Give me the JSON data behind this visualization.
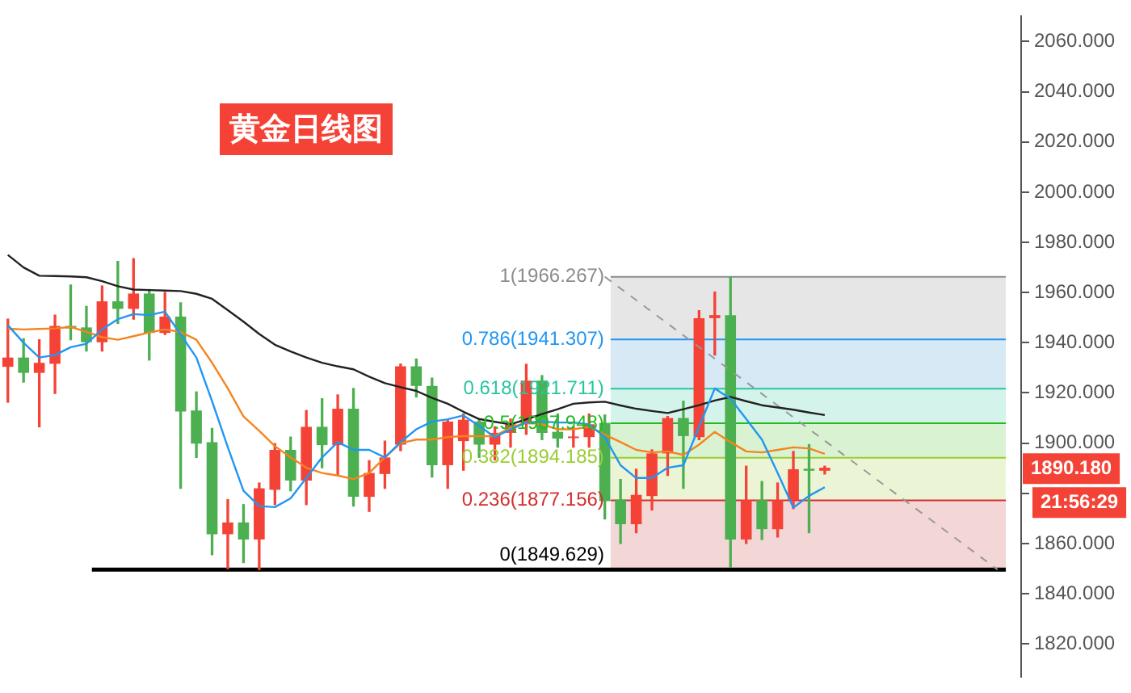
{
  "chart_data": {
    "type": "candlestick",
    "title": "黄金日线图",
    "categories": [
      null,
      null,
      null,
      null,
      null,
      null,
      null,
      null,
      null,
      null,
      null,
      null,
      null,
      null,
      null,
      null,
      null,
      null,
      null,
      null,
      null,
      null,
      null,
      null,
      null,
      null,
      null,
      null,
      null,
      null,
      null,
      null,
      null,
      null,
      null,
      null,
      null,
      null,
      null,
      null,
      null,
      null,
      null,
      null,
      null,
      null,
      null,
      null,
      null,
      null,
      null,
      null,
      null,
      null,
      null,
      null,
      null,
      null,
      null,
      null,
      null,
      null,
      null,
      null,
      null
    ],
    "ohlc": [
      [
        1930.4,
        1949.4,
        1916.3,
        1934.1
      ],
      [
        1934.1,
        1941.6,
        1924.3,
        1928.0
      ],
      [
        1928.0,
        1941.2,
        1906.5,
        1932.0
      ],
      [
        1931.6,
        1951.0,
        1919.8,
        1946.7
      ],
      [
        1946.7,
        1963.0,
        1941.2,
        1945.7
      ],
      [
        1946.1,
        1954.5,
        1936.7,
        1940.2
      ],
      [
        1940.2,
        1962.6,
        1936.7,
        1956.5
      ],
      [
        1956.5,
        1972.4,
        1947.7,
        1953.5
      ],
      [
        1953.5,
        1973.5,
        1949.4,
        1959.6
      ],
      [
        1959.6,
        1961.2,
        1933.1,
        1943.9
      ],
      [
        1943.9,
        1960.0,
        1943.3,
        1950.4
      ],
      [
        1950.4,
        1955.9,
        1882.0,
        1912.6
      ],
      [
        1913.0,
        1920.4,
        1894.3,
        1899.8
      ],
      [
        1900.4,
        1905.9,
        1855.5,
        1863.7
      ],
      [
        1863.7,
        1877.5,
        1850.0,
        1868.4
      ],
      [
        1868.4,
        1875.5,
        1852.4,
        1861.6
      ],
      [
        1861.6,
        1884.1,
        1849.6,
        1882.0
      ],
      [
        1881.4,
        1899.8,
        1875.5,
        1897.3
      ],
      [
        1897.3,
        1902.4,
        1881.0,
        1885.1
      ],
      [
        1885.1,
        1913.0,
        1875.5,
        1906.5
      ],
      [
        1906.5,
        1917.7,
        1890.2,
        1899.2
      ],
      [
        1899.2,
        1919.2,
        1887.1,
        1913.7
      ],
      [
        1913.7,
        1921.8,
        1874.9,
        1878.6
      ],
      [
        1878.6,
        1893.0,
        1872.8,
        1888.1
      ],
      [
        1887.7,
        1900.8,
        1882.0,
        1894.3
      ],
      [
        1899.4,
        1931.5,
        1897.0,
        1930.6
      ],
      [
        1930.6,
        1933.5,
        1918.4,
        1922.8
      ],
      [
        1922.8,
        1925.9,
        1886.5,
        1891.2
      ],
      [
        1891.2,
        1909.0,
        1882.0,
        1908.6
      ],
      [
        1900.8,
        1911.6,
        1889.2,
        1909.3
      ],
      [
        1908.6,
        1909.6,
        1894.3,
        1899.4
      ],
      [
        1899.4,
        1906.5,
        1893.3,
        1904.1
      ],
      [
        1904.1,
        1909.6,
        1898.4,
        1907.5
      ],
      [
        1907.5,
        1931.4,
        1903.5,
        1924.9
      ],
      [
        1924.9,
        1926.9,
        1901.4,
        1904.1
      ],
      [
        1904.5,
        1911.6,
        1898.4,
        1901.8
      ],
      [
        1902.0,
        1906.5,
        1898.4,
        1902.4
      ],
      [
        1902.4,
        1911.6,
        1898.4,
        1907.5
      ],
      [
        1908.1,
        1911.2,
        1869.8,
        1876.9
      ],
      [
        1877.5,
        1885.5,
        1860.0,
        1867.7
      ],
      [
        1867.7,
        1889.6,
        1864.3,
        1879.4
      ],
      [
        1878.9,
        1897.3,
        1873.4,
        1895.9
      ],
      [
        1895.9,
        1910.6,
        1887.1,
        1910.0
      ],
      [
        1910.0,
        1916.7,
        1882.0,
        1902.8
      ],
      [
        1902.4,
        1952.8,
        1901.4,
        1949.8
      ],
      [
        1949.8,
        1960.2,
        1935.1,
        1951.0
      ],
      [
        1951.0,
        1966.267,
        1850.5,
        1861.6
      ],
      [
        1861.6,
        1890.8,
        1860.0,
        1877.3
      ],
      [
        1877.3,
        1884.7,
        1861.6,
        1865.7
      ],
      [
        1865.7,
        1884.1,
        1862.6,
        1877.3
      ],
      [
        1877.3,
        1896.7,
        1873.9,
        1889.6
      ],
      [
        1889.8,
        1899.4,
        1864.3,
        1889.0
      ],
      [
        1889.0,
        1890.8,
        1887.7,
        1890.18
      ],
      null,
      null,
      null,
      null,
      null,
      null,
      null,
      null,
      null,
      null,
      null,
      null
    ],
    "colors": [
      "#f44336",
      "#4caf50",
      "#f44336",
      "#f44336",
      "#4caf50",
      "#4caf50",
      "#f44336",
      "#4caf50",
      "#f44336",
      "#4caf50",
      "#f44336",
      "#4caf50",
      "#4caf50",
      "#4caf50",
      "#f44336",
      "#4caf50",
      "#f44336",
      "#f44336",
      "#4caf50",
      "#f44336",
      "#4caf50",
      "#f44336",
      "#4caf50",
      "#f44336",
      "#f44336",
      "#f44336",
      "#4caf50",
      "#4caf50",
      "#f44336",
      "#f44336",
      "#4caf50",
      "#f44336",
      "#f44336",
      "#f44336",
      "#4caf50",
      "#4caf50",
      "#f44336",
      "#f44336",
      "#4caf50",
      "#4caf50",
      "#f44336",
      "#f44336",
      "#f44336",
      "#4caf50",
      "#f44336",
      "#f44336",
      "#4caf50",
      "#f44336",
      "#4caf50",
      "#f44336",
      "#f44336",
      "#4caf50",
      "#f44336",
      null,
      null,
      null,
      null,
      null,
      null,
      null,
      null,
      null,
      null,
      null,
      null
    ],
    "series": [
      {
        "type": "line",
        "color": "#2196f3",
        "values": [
          1947,
          1940,
          1934.1,
          1935.1,
          1938.2,
          1939.6,
          1945.3,
          1949.4,
          1951.4,
          1951.0,
          1952.4,
          1943.3,
          1934.1,
          1916.7,
          1898.4,
          1881.0,
          1874.9,
          1874.5,
          1878.0,
          1886.1,
          1894.3,
          1900.4,
          1897.3,
          1897.3,
          1894.3,
          1900.4,
          1905.5,
          1908.6,
          1909.5,
          1911.0,
          1906.9,
          1902.4,
          1905.5,
          1908.2,
          1908.6,
          1908.2,
          1908.2,
          1907.5,
          1902.4,
          1891.2,
          1886.1,
          1886.1,
          1890.2,
          1891.2,
          1906.5,
          1921.8,
          1917.7,
          1909.6,
          1901.4,
          1888.1,
          1874.3,
          1879.0,
          1882.4,
          null,
          null,
          null,
          null,
          null,
          null,
          null,
          null,
          null,
          null,
          null,
          null
        ]
      },
      {
        "type": "line",
        "color": "#f5841f",
        "values": [
          1945.6,
          1945.3,
          1945.5,
          1945.7,
          1946.3,
          1944.3,
          1942.2,
          1941.2,
          1942.6,
          1944.1,
          1945.3,
          1944.3,
          1941.2,
          1932.0,
          1921.8,
          1910.6,
          1904.9,
          1898.8,
          1894.3,
          1890.2,
          1888.1,
          1887.1,
          1885.7,
          1888.1,
          1894.3,
          1900.0,
          1901.4,
          1901.4,
          1902.4,
          1902.8,
          1902.8,
          1902.8,
          1906.1,
          1908.2,
          1907.5,
          1905.5,
          1905.5,
          1906.5,
          1903.4,
          1900.4,
          1897.3,
          1896.3,
          1896.7,
          1895.3,
          1899.4,
          1904.5,
          1900.4,
          1896.7,
          1896.3,
          1897.3,
          1898.3,
          1897.9,
          1895.7,
          null,
          null,
          null,
          null,
          null,
          null,
          null,
          null,
          null,
          null,
          null,
          null
        ]
      },
      {
        "type": "line",
        "color": "#222222",
        "values": [
          1975,
          1970,
          1966.7,
          1966.6,
          1966.4,
          1966.1,
          1964.5,
          1962.5,
          1961.2,
          1961,
          1960.8,
          1960.6,
          1959.5,
          1957.5,
          1953,
          1948.4,
          1943.5,
          1939.2,
          1936.5,
          1934.1,
          1932,
          1930.6,
          1929.4,
          1926.5,
          1923.9,
          1922.3,
          1920.8,
          1918,
          1915.7,
          1912.5,
          1909.6,
          1908.5,
          1907.5,
          1909.5,
          1911.6,
          1913.5,
          1915.7,
          1916.2,
          1916.5,
          1915,
          1913.7,
          1912.8,
          1912.0,
          1913.5,
          1915.1,
          1917,
          1918.4,
          1916.7,
          1915.1,
          1914.2,
          1913.3,
          1912.2,
          1911.2,
          null,
          null,
          null,
          null,
          null,
          null,
          null,
          null,
          null,
          null,
          null,
          null
        ]
      },
      {
        "type": "line",
        "color": "#999999",
        "line_style": "dashed",
        "values": [
          null,
          null,
          null,
          null,
          null,
          null,
          null,
          null,
          null,
          null,
          null,
          null,
          null,
          null,
          null,
          null,
          null,
          null,
          null,
          null,
          null,
          null,
          null,
          null,
          null,
          null,
          null,
          null,
          null,
          null,
          null,
          null,
          null,
          null,
          null,
          null,
          null,
          null,
          1966.3,
          null,
          null,
          null,
          null,
          null,
          null,
          null,
          null,
          null,
          null,
          null,
          null,
          null,
          null,
          null,
          null,
          null,
          null,
          null,
          null,
          null,
          null,
          null,
          null,
          1849.6,
          null
        ]
      }
    ],
    "ylim": [
      1807,
      2070
    ],
    "yticks": [
      {
        "value": 1820,
        "label": "1820.000"
      },
      {
        "value": 1840,
        "label": "1840.000"
      },
      {
        "value": 1860,
        "label": "1860.000"
      },
      {
        "value": 1880,
        "label": null
      },
      {
        "value": 1900,
        "label": "1900.000"
      },
      {
        "value": 1920,
        "label": "1920.000"
      },
      {
        "value": 1940,
        "label": "1940.000"
      },
      {
        "value": 1960,
        "label": "1960.000"
      },
      {
        "value": 1980,
        "label": "1980.000"
      },
      {
        "value": 2000,
        "label": "2000.000"
      },
      {
        "value": 2020,
        "label": "2020.000"
      },
      {
        "value": 2040,
        "label": "2040.000"
      },
      {
        "value": 2060,
        "label": "2060.000"
      }
    ],
    "tick_labels": "y",
    "bands": [
      {
        "axis": "y",
        "from": 1941.307,
        "to": 1966.267,
        "color": "#e6e6e6"
      },
      {
        "axis": "y",
        "from": 1921.711,
        "to": 1941.307,
        "color": "#d6e9f5"
      },
      {
        "axis": "y",
        "from": 1907.948,
        "to": 1921.711,
        "color": "#d4f3ea"
      },
      {
        "axis": "y",
        "from": 1894.185,
        "to": 1907.948,
        "color": "#d9f2d2"
      },
      {
        "axis": "y",
        "from": 1877.156,
        "to": 1894.185,
        "color": "#ecf4d6"
      },
      {
        "axis": "y",
        "from": 1849.629,
        "to": 1877.156,
        "color": "#f3d6d6"
      }
    ],
    "ref_lines": [
      {
        "axis": "y",
        "value": 1966.267,
        "label": "1(1966.267)",
        "color": "#8c8c8c"
      },
      {
        "axis": "y",
        "value": 1941.307,
        "label": "0.786(1941.307)",
        "color": "#2196f3"
      },
      {
        "axis": "y",
        "value": 1921.711,
        "label": "0.618(1921.711)",
        "color": "#26c6a0"
      },
      {
        "axis": "y",
        "value": 1907.948,
        "label": "0.5(1907.948)",
        "color": "#22bb22"
      },
      {
        "axis": "y",
        "value": 1894.185,
        "label": "0.382(1894.185)",
        "color": "#9acd32"
      },
      {
        "axis": "y",
        "value": 1877.156,
        "label": "0.236(1877.156)",
        "color": "#d32f2f"
      },
      {
        "axis": "y",
        "value": 1849.629,
        "label": "0(1849.629)",
        "color": "#000000"
      }
    ],
    "annotations": [
      "1890.180",
      "21:56:29"
    ]
  }
}
